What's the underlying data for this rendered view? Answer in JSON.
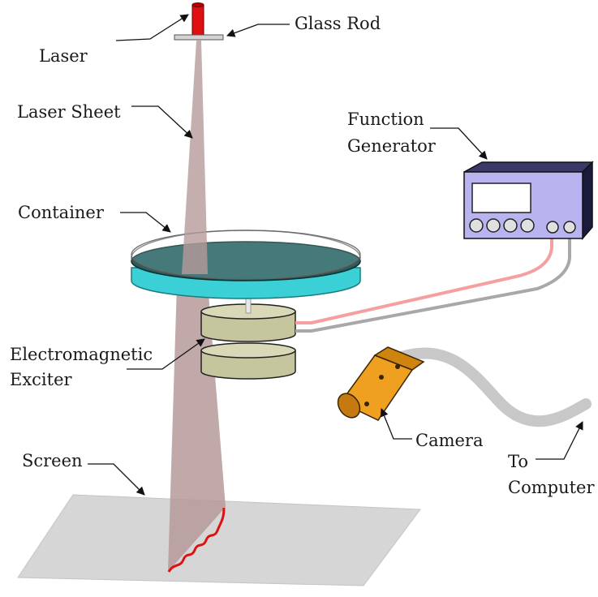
{
  "labels": {
    "laser": "Laser",
    "glass_rod": "Glass Rod",
    "laser_sheet": "Laser Sheet",
    "function_generator_line1": "Function",
    "function_generator_line2": "Generator",
    "container": "Container",
    "exciter_line1": "Electromagnetic",
    "exciter_line2": "Exciter",
    "camera": "Camera",
    "screen": "Screen",
    "to_computer_line1": "To",
    "to_computer_line2": "Computer"
  },
  "colors": {
    "laser_body": "#e01010",
    "laser_sheet": "#b79a9a",
    "fluid_top": "#1e5c5c",
    "container_rim": "#3ad0d6",
    "exciter": "#c9c9a4",
    "generator_body": "#23234a",
    "generator_panel": "#b8b4f0",
    "camera_body": "#f0a020",
    "wire_red": "#f4a0a0",
    "wire_gray": "#a8a8a8",
    "screen": "#d6d6d6",
    "wave": "#e01010"
  }
}
